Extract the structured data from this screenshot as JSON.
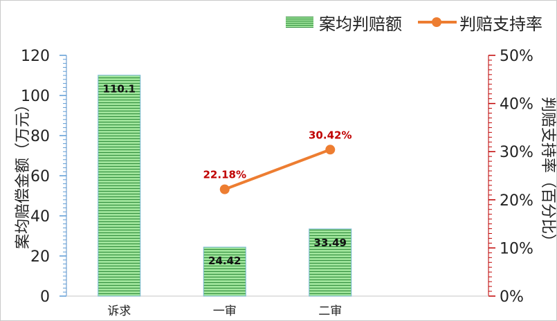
{
  "chart_data": {
    "type": "bar+line",
    "categories": [
      "诉求",
      "一审",
      "二审",
      ""
    ],
    "bar_series": {
      "name": "案均判赔额",
      "values": [
        110.1,
        24.42,
        33.49
      ],
      "labels": [
        "110.1",
        "24.42",
        "33.49"
      ],
      "color": "#7fd27a",
      "stripe_color": "#2e8b3a"
    },
    "line_series": {
      "name": "判赔支持率",
      "values": [
        null,
        22.18,
        30.42
      ],
      "labels": [
        "",
        "22.18%",
        "30.42%"
      ],
      "color": "#ed7d31",
      "label_color": "#c00000"
    },
    "ylabel_left": "案均赔偿金额（万元）",
    "ylabel_right": "判赔支持率（百分比）",
    "left_axis": {
      "ylim": [
        0,
        120
      ],
      "ticks": [
        "0",
        "20",
        "40",
        "60",
        "80",
        "100",
        "120"
      ],
      "tick_color": "#5b9bd5"
    },
    "right_axis": {
      "ylim": [
        0,
        50
      ],
      "ticks": [
        "0%",
        "10%",
        "20%",
        "30%",
        "40%",
        "50%"
      ],
      "tick_color": "#c00000"
    },
    "legend_position": "top-right",
    "grid": false
  }
}
